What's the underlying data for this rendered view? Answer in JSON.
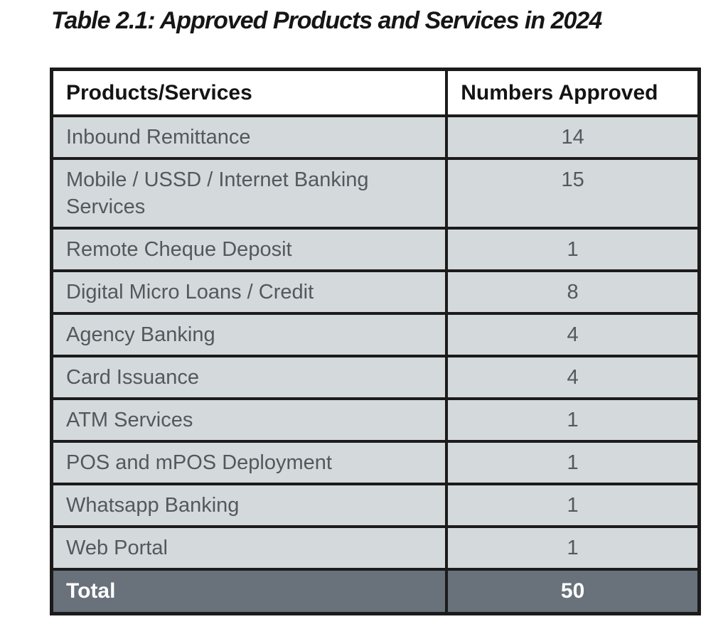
{
  "title": "Table 2.1: Approved Products and Services in 2024",
  "table": {
    "columns": {
      "products_services": "Products/Services",
      "numbers_approved": "Numbers Approved"
    },
    "rows": [
      {
        "label": "Inbound Remittance",
        "value": "14"
      },
      {
        "label": "Mobile / USSD / Internet Banking Services",
        "value": "15"
      },
      {
        "label": "Remote Cheque Deposit",
        "value": "1"
      },
      {
        "label": "Digital Micro Loans / Credit",
        "value": "8"
      },
      {
        "label": "Agency Banking",
        "value": "4"
      },
      {
        "label": "Card Issuance",
        "value": "4"
      },
      {
        "label": "ATM Services",
        "value": "1"
      },
      {
        "label": "POS and mPOS Deployment",
        "value": "1"
      },
      {
        "label": "Whatsapp Banking",
        "value": "1"
      },
      {
        "label": "Web Portal",
        "value": "1"
      }
    ],
    "total": {
      "label": "Total",
      "value": "50"
    }
  },
  "colors": {
    "border": "#1b1b1b",
    "header_background": "#ffffff",
    "row_background": "#d4d9db",
    "row_text": "#53585d",
    "total_background": "#69717a",
    "total_text": "#ffffff"
  }
}
